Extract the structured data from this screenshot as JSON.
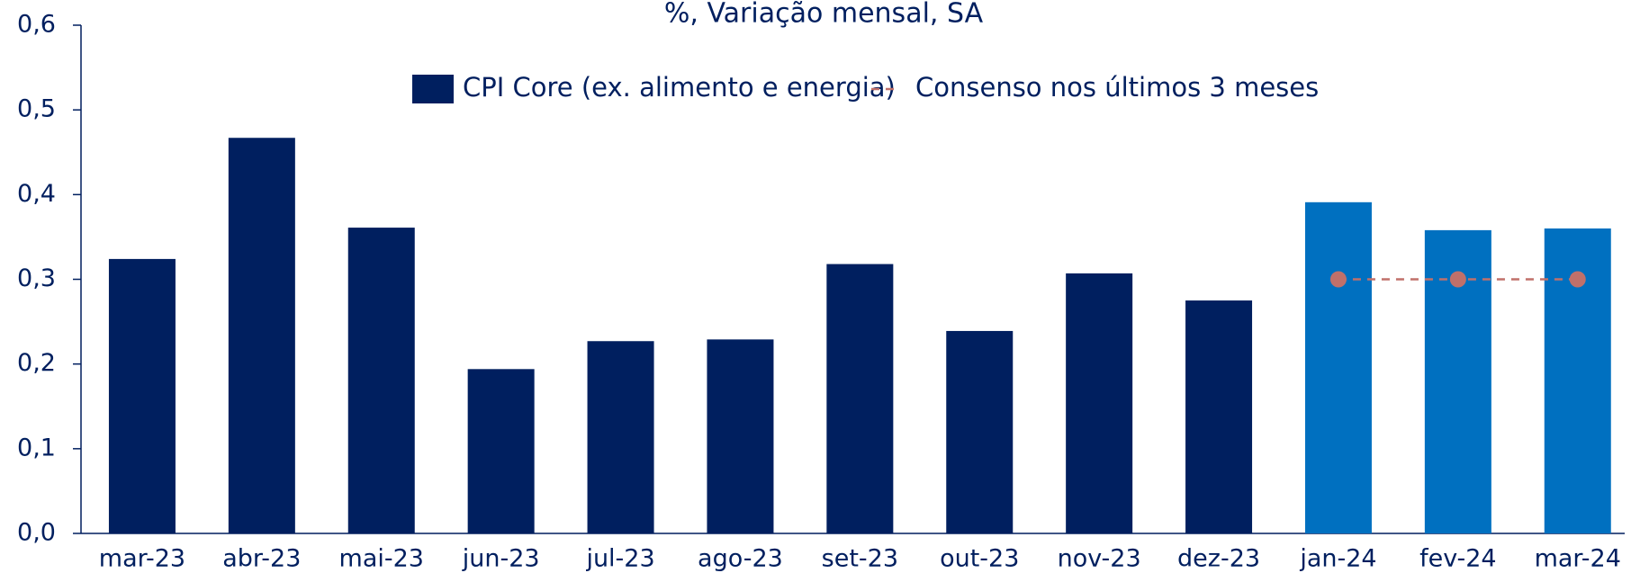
{
  "chart_data": {
    "type": "bar",
    "title": "%, Variação mensal, SA",
    "categories": [
      "mar-23",
      "abr-23",
      "mai-23",
      "jun-23",
      "jul-23",
      "ago-23",
      "set-23",
      "out-23",
      "nov-23",
      "dez-23",
      "jan-24",
      "fev-24",
      "mar-24"
    ],
    "series": [
      {
        "name": "CPI Core (ex. alimento e energia)",
        "type": "bar",
        "color": "#001f5f",
        "colors": [
          "#001f5f",
          "#001f5f",
          "#001f5f",
          "#001f5f",
          "#001f5f",
          "#001f5f",
          "#001f5f",
          "#001f5f",
          "#001f5f",
          "#001f5f",
          "#0070c0",
          "#0070c0",
          "#0070c0"
        ],
        "values": [
          0.324,
          0.467,
          0.361,
          0.194,
          0.227,
          0.229,
          0.318,
          0.239,
          0.307,
          0.275,
          0.391,
          0.358,
          0.36
        ]
      },
      {
        "name": "Consenso nos últimos 3 meses",
        "type": "line",
        "color": "#c0706a",
        "dashed": true,
        "values": [
          null,
          null,
          null,
          null,
          null,
          null,
          null,
          null,
          null,
          null,
          0.3,
          0.3,
          0.3
        ]
      }
    ],
    "ylim": [
      0,
      0.6
    ],
    "yticks": [
      {
        "value": 0,
        "label": "0,0"
      },
      {
        "value": 0.1,
        "label": "0,1"
      },
      {
        "value": 0.2,
        "label": "0,2"
      },
      {
        "value": 0.3,
        "label": "0,3"
      },
      {
        "value": 0.4,
        "label": "0,4"
      },
      {
        "value": 0.5,
        "label": "0,5"
      },
      {
        "value": 0.6,
        "label": "0,6"
      }
    ],
    "legend": "top"
  }
}
